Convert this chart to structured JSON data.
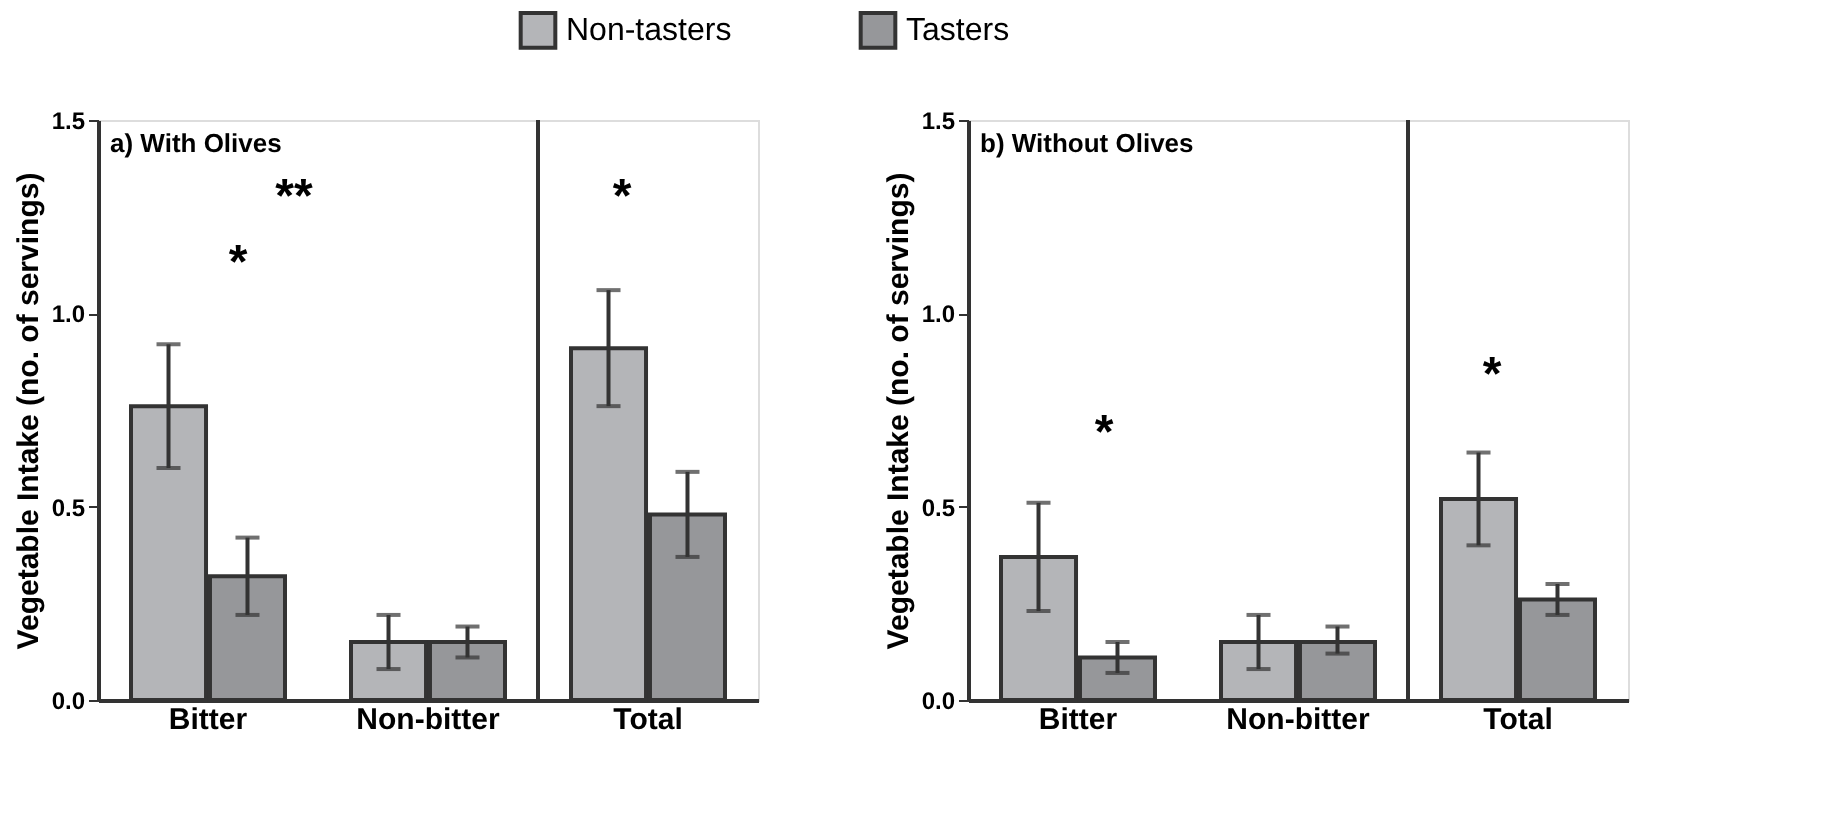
{
  "chart_data": [
    {
      "type": "bar",
      "title": "a) With Olives",
      "ylabel": "Vegetable Intake (no. of servings)",
      "categories": [
        "Bitter",
        "Non-bitter",
        "Total"
      ],
      "legend": "top",
      "ylim": [
        0,
        1.5
      ],
      "yticks": [
        {
          "value": 0,
          "label": "0.0"
        },
        {
          "value": 0.5,
          "label": "0.5"
        },
        {
          "value": 1,
          "label": "1.0"
        },
        {
          "value": 1.5,
          "label": "1.5"
        }
      ],
      "series": [
        {
          "name": "Non-tasters",
          "color": "#b4b5b8",
          "values": [
            0.76,
            0.15,
            0.91
          ],
          "errors": [
            [
              0.6,
              0.92
            ],
            [
              0.08,
              0.22
            ],
            [
              0.76,
              1.06
            ]
          ]
        },
        {
          "name": "Tasters",
          "color": "#96979a",
          "values": [
            0.32,
            0.15,
            0.48
          ],
          "errors": [
            [
              0.22,
              0.42
            ],
            [
              0.11,
              0.19
            ],
            [
              0.37,
              0.59
            ]
          ]
        }
      ],
      "annotations": [
        "*",
        "**",
        "*"
      ]
    },
    {
      "type": "bar",
      "title": "b) Without Olives",
      "ylabel": "Vegetable Intake (no. of servings)",
      "categories": [
        "Bitter",
        "Non-bitter",
        "Total"
      ],
      "legend": "top",
      "ylim": [
        0,
        1.5
      ],
      "yticks": [
        {
          "value": 0,
          "label": "0.0"
        },
        {
          "value": 0.5,
          "label": "0.5"
        },
        {
          "value": 1,
          "label": "1.0"
        },
        {
          "value": 1.5,
          "label": "1.5"
        }
      ],
      "series": [
        {
          "name": "Non-tasters",
          "color": "#b4b5b8",
          "values": [
            0.37,
            0.15,
            0.52
          ],
          "errors": [
            [
              0.23,
              0.51
            ],
            [
              0.08,
              0.22
            ],
            [
              0.4,
              0.64
            ]
          ]
        },
        {
          "name": "Tasters",
          "color": "#96979a",
          "values": [
            0.11,
            0.15,
            0.26
          ],
          "errors": [
            [
              0.07,
              0.15
            ],
            [
              0.12,
              0.19
            ],
            [
              0.22,
              0.3
            ]
          ]
        }
      ],
      "annotations": [
        "*",
        "*"
      ]
    }
  ]
}
